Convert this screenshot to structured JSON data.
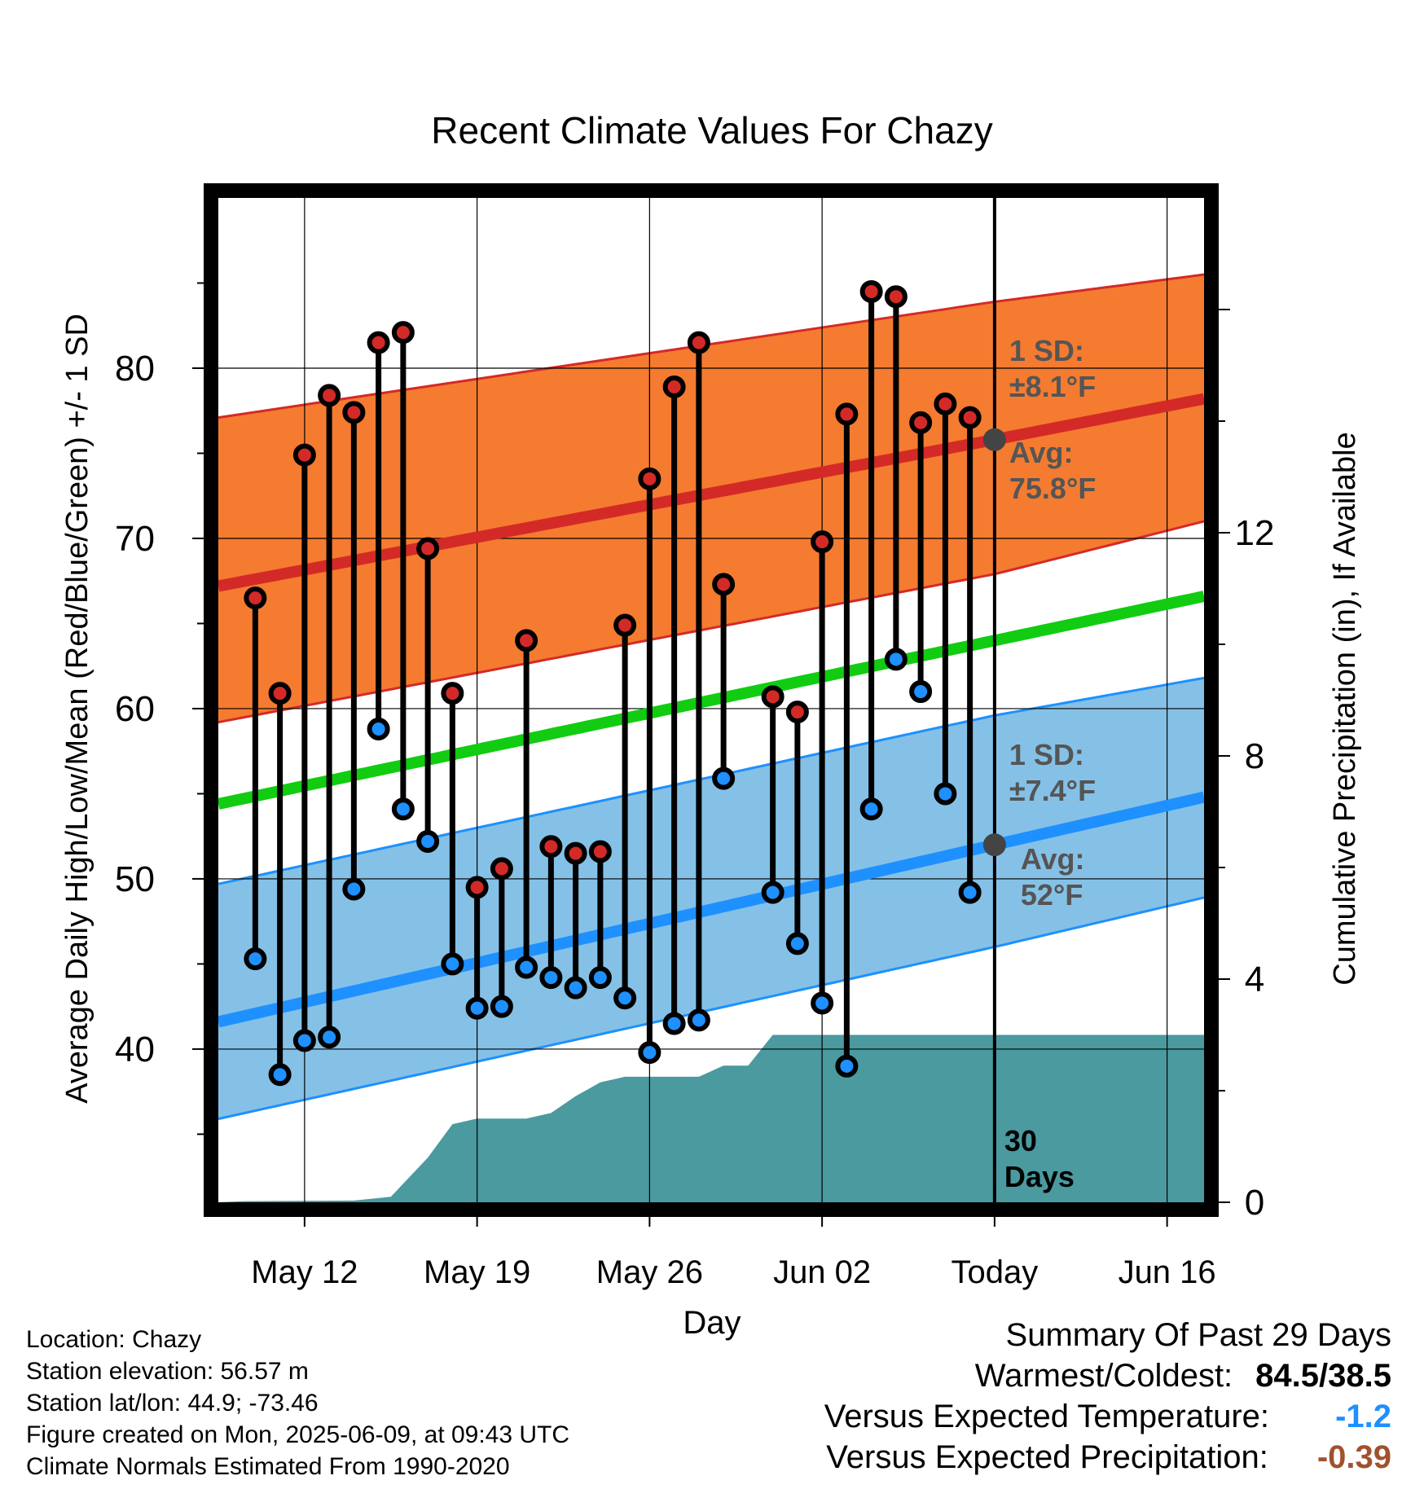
{
  "chart_data": {
    "type": "line",
    "title": "Recent Climate Values For Chazy",
    "xlabel": "Day",
    "ylabel": "Average Daily High/Low/Mean (Red/Blue/Green) +/- 1 SD",
    "y2label": "Cumulative Precipitation (in), If Available",
    "ylim": [
      31,
      90
    ],
    "y2lim": [
      0,
      18
    ],
    "x_day_range": [
      -1.5,
      38.5
    ],
    "x_ticks": [
      {
        "day": 2,
        "label": "May 12"
      },
      {
        "day": 9,
        "label": "May 19"
      },
      {
        "day": 16,
        "label": "May 26"
      },
      {
        "day": 23,
        "label": "Jun 02"
      },
      {
        "day": 30,
        "label": "Today"
      },
      {
        "day": 37,
        "label": "Jun 16"
      }
    ],
    "y_ticks": [
      40,
      50,
      60,
      70,
      80
    ],
    "y2_ticks": [
      0,
      4,
      8,
      12
    ],
    "grid": true,
    "today_day": 30,
    "period_label": [
      "30",
      "Days"
    ],
    "normals": {
      "high_mean": [
        [
          -1.5,
          67.2
        ],
        [
          30,
          75.8
        ],
        [
          38.5,
          78.2
        ]
      ],
      "high_sd_upper": [
        [
          -1.5,
          77.1
        ],
        [
          30,
          83.9
        ],
        [
          38.5,
          85.5
        ]
      ],
      "high_sd_lower": [
        [
          -1.5,
          59.2
        ],
        [
          30,
          67.9
        ],
        [
          38.5,
          71.0
        ]
      ],
      "mean": [
        [
          -1.5,
          54.4
        ],
        [
          30,
          64.0
        ],
        [
          38.5,
          66.6
        ]
      ],
      "low_mean": [
        [
          -1.5,
          41.6
        ],
        [
          30,
          52.0
        ],
        [
          38.5,
          54.8
        ]
      ],
      "low_sd_upper": [
        [
          -1.5,
          49.7
        ],
        [
          30,
          59.6
        ],
        [
          38.5,
          61.8
        ]
      ],
      "low_sd_lower": [
        [
          -1.5,
          35.9
        ],
        [
          30,
          46.0
        ],
        [
          38.5,
          48.9
        ]
      ]
    },
    "high_annotation": {
      "sd_label": "1 SD:",
      "sd_value": "±8.1°F",
      "avg_label": "Avg:",
      "avg_value": "75.8°F",
      "avg": 75.8
    },
    "low_annotation": {
      "sd_label": "1 SD:",
      "sd_value": "±7.4°F",
      "avg_label": "Avg:",
      "avg_value": "52°F",
      "avg": 52.0
    },
    "series": [
      {
        "name": "High",
        "color": "#cc2222",
        "values": [
          [
            0,
            66.5
          ],
          [
            1,
            60.9
          ],
          [
            2,
            74.9
          ],
          [
            3,
            78.4
          ],
          [
            4,
            77.4
          ],
          [
            5,
            81.5
          ],
          [
            6,
            82.1
          ],
          [
            7,
            69.4
          ],
          [
            8,
            60.9
          ],
          [
            9,
            49.5
          ],
          [
            10,
            50.6
          ],
          [
            11,
            64.0
          ],
          [
            12,
            51.9
          ],
          [
            13,
            51.5
          ],
          [
            14,
            51.6
          ],
          [
            15,
            64.9
          ],
          [
            16,
            73.5
          ],
          [
            17,
            78.9
          ],
          [
            18,
            81.5
          ],
          [
            19,
            67.3
          ],
          [
            21,
            60.7
          ],
          [
            22,
            59.8
          ],
          [
            23,
            69.8
          ],
          [
            24,
            77.3
          ],
          [
            25,
            84.5
          ],
          [
            26,
            84.2
          ],
          [
            27,
            76.8
          ],
          [
            28,
            77.9
          ],
          [
            29,
            77.1
          ]
        ]
      },
      {
        "name": "Low",
        "color": "#2288ee",
        "values": [
          [
            0,
            45.3
          ],
          [
            1,
            38.5
          ],
          [
            2,
            40.5
          ],
          [
            3,
            40.7
          ],
          [
            4,
            49.4
          ],
          [
            5,
            58.8
          ],
          [
            6,
            54.1
          ],
          [
            7,
            52.2
          ],
          [
            8,
            45.0
          ],
          [
            9,
            42.4
          ],
          [
            10,
            42.5
          ],
          [
            11,
            44.8
          ],
          [
            12,
            44.2
          ],
          [
            13,
            43.6
          ],
          [
            14,
            44.2
          ],
          [
            15,
            43.0
          ],
          [
            16,
            39.8
          ],
          [
            17,
            41.5
          ],
          [
            18,
            41.7
          ],
          [
            19,
            55.9
          ],
          [
            21,
            49.2
          ],
          [
            22,
            46.2
          ],
          [
            23,
            42.7
          ],
          [
            24,
            39.0
          ],
          [
            25,
            54.1
          ],
          [
            26,
            62.9
          ],
          [
            27,
            61.0
          ],
          [
            28,
            55.0
          ],
          [
            29,
            49.2
          ]
        ]
      },
      {
        "name": "Cumulative Precipitation",
        "color": "#4a9aa0",
        "values": [
          [
            -1.5,
            0
          ],
          [
            -0.5,
            0.02
          ],
          [
            4,
            0.03
          ],
          [
            5.5,
            0.1
          ],
          [
            7,
            0.8
          ],
          [
            8,
            1.4
          ],
          [
            9,
            1.5
          ],
          [
            11,
            1.5
          ],
          [
            12,
            1.6
          ],
          [
            13,
            1.9
          ],
          [
            14,
            2.15
          ],
          [
            15,
            2.25
          ],
          [
            18,
            2.25
          ],
          [
            19,
            2.45
          ],
          [
            20,
            2.45
          ],
          [
            21,
            3.0
          ],
          [
            38.5,
            3.0
          ]
        ]
      }
    ]
  },
  "colors": {
    "high_band": "#f47b30",
    "high_line": "#d42a27",
    "mean_line": "#11cc11",
    "low_band": "#85c1e6",
    "low_line": "#1e90ff",
    "precip_fill": "#4a9aa0",
    "annotation_text": "#555555",
    "today_marker": "#444444",
    "versus_temp": "#1e90ff",
    "versus_precip": "#a0522d"
  },
  "footer": {
    "location": "Location: Chazy",
    "elevation": "Station elevation: 56.57 m",
    "latlon": "Station lat/lon: 44.9; -73.46",
    "created": "Figure created on Mon, 2025-06-09, at 09:43 UTC",
    "normals": "Climate Normals Estimated From 1990-2020"
  },
  "summary": {
    "title": "Summary Of Past 29 Days",
    "warmest_coldest_label": "Warmest/Coldest:",
    "warmest_coldest_value": "84.5/38.5",
    "versus_temp_label": "Versus Expected Temperature:",
    "versus_temp_value": "-1.2",
    "versus_precip_label": "Versus Expected Precipitation:",
    "versus_precip_value": "-0.39"
  }
}
